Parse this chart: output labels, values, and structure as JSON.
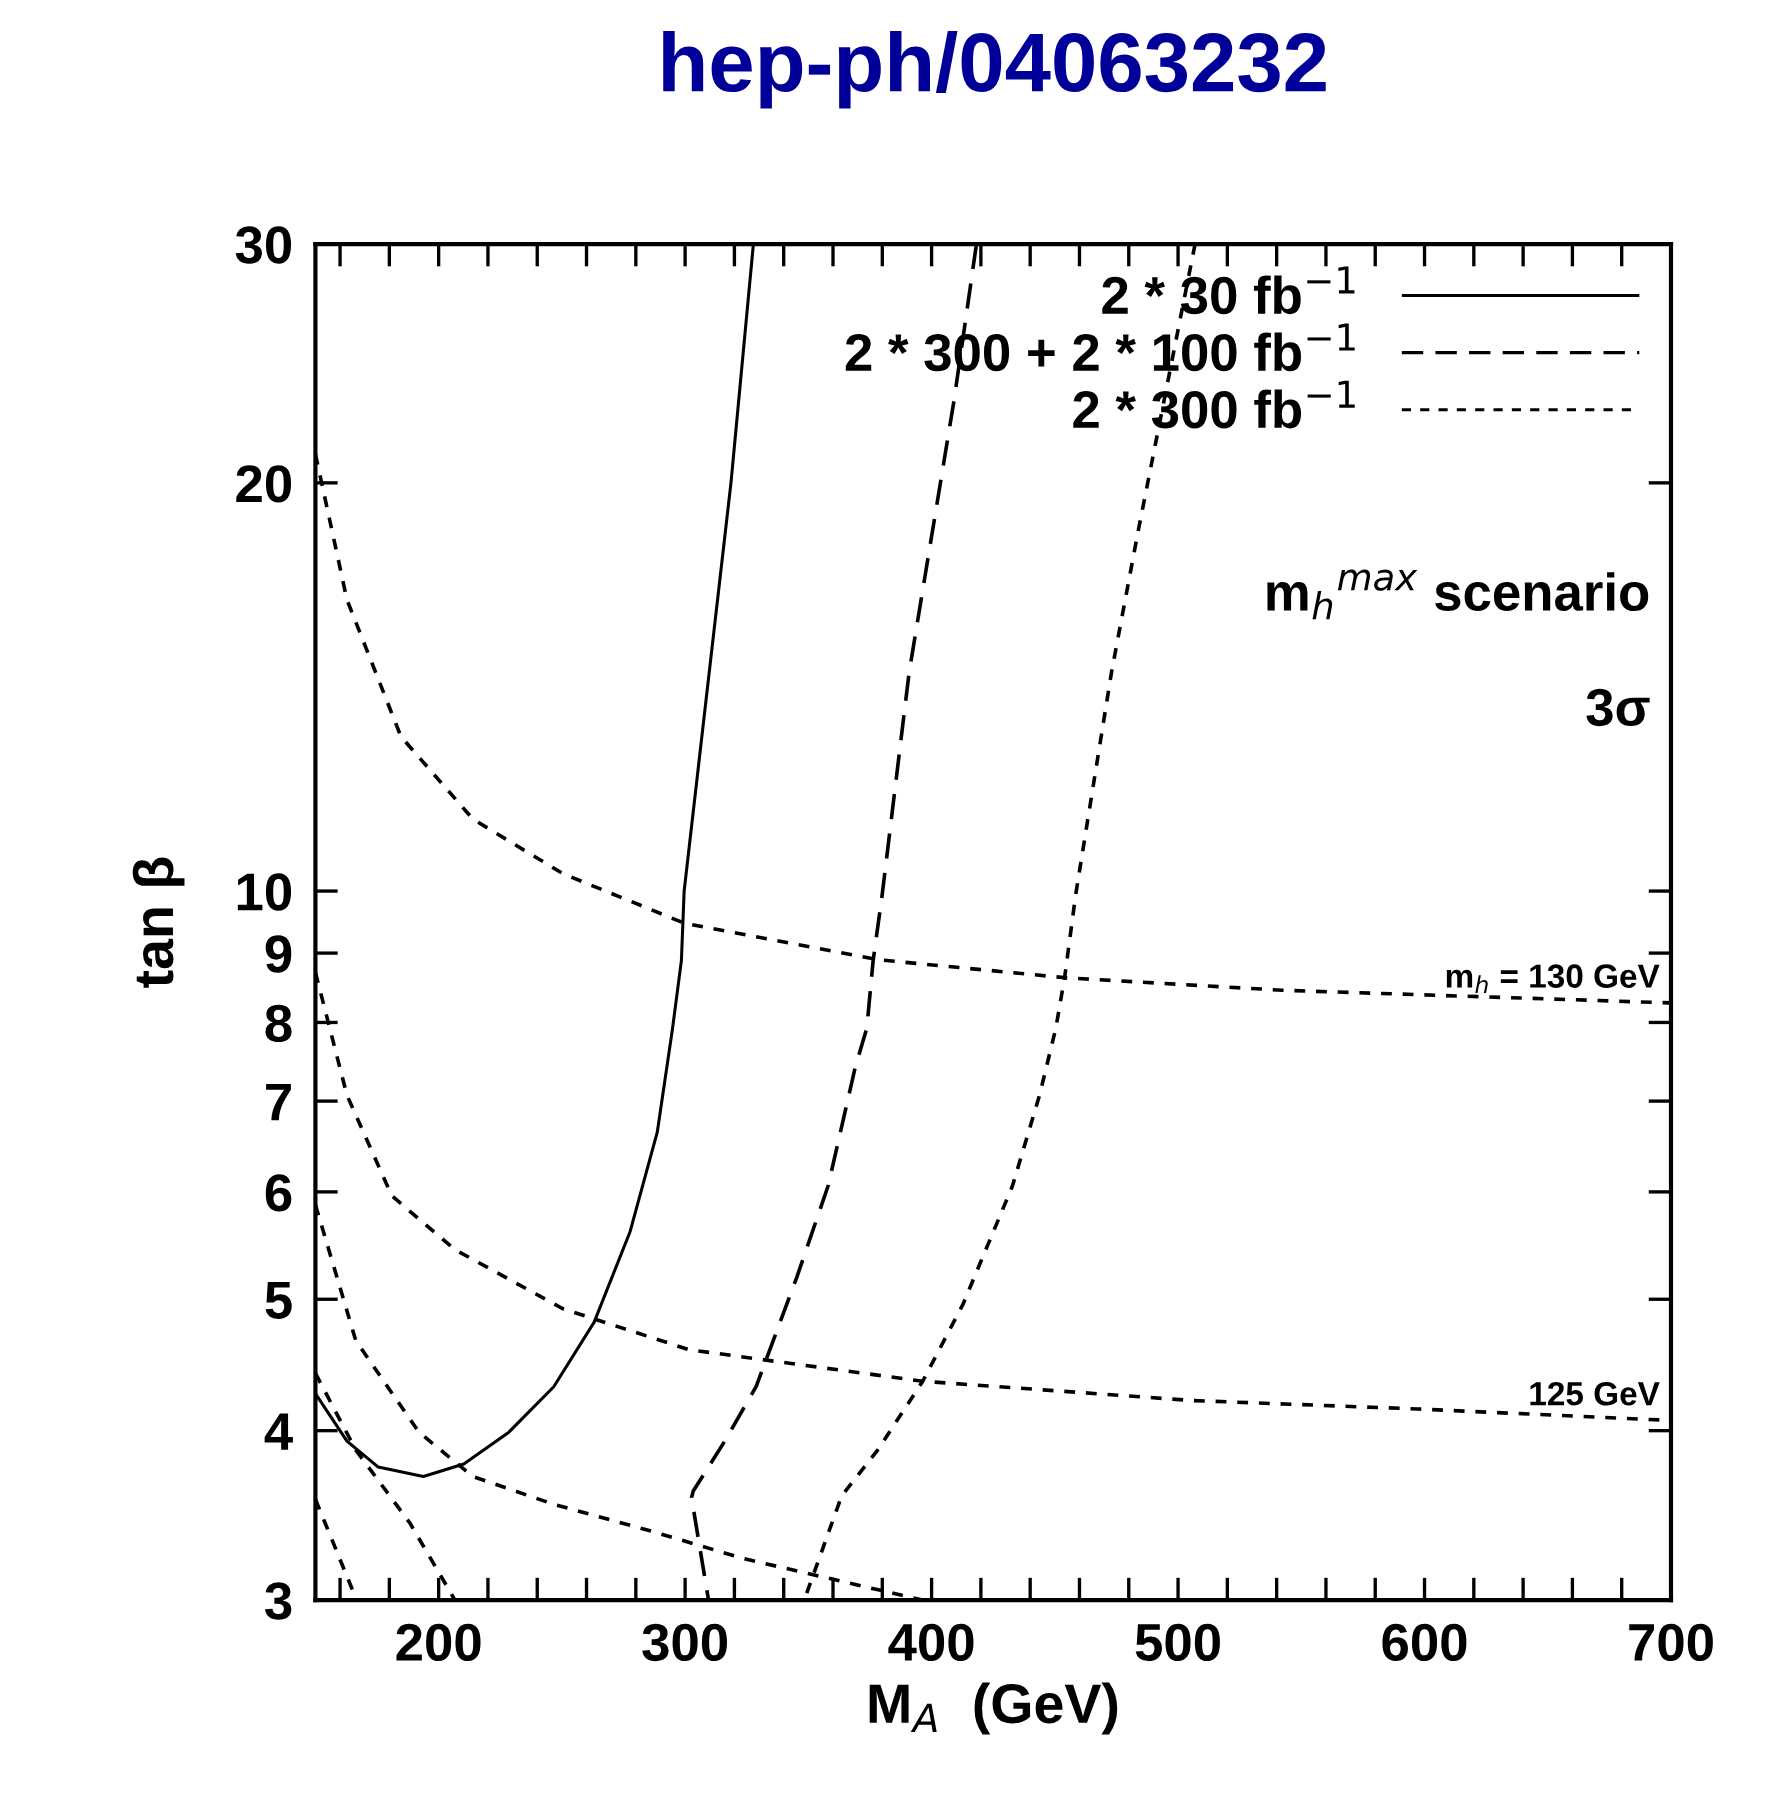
{
  "chart_data": {
    "type": "line",
    "title": "hep-ph/04063232",
    "xlabel": "M$_{A}$  (GeV)",
    "ylabel": "tan β",
    "log": "y",
    "xlim": [
      150,
      700
    ],
    "ylim": [
      3,
      30
    ],
    "xticks": [
      {
        "value": 160,
        "label": null
      },
      {
        "value": 180,
        "label": null
      },
      200,
      {
        "value": 220,
        "label": null
      },
      {
        "value": 240,
        "label": null
      },
      {
        "value": 260,
        "label": null
      },
      {
        "value": 280,
        "label": null
      },
      300,
      {
        "value": 320,
        "label": null
      },
      {
        "value": 340,
        "label": null
      },
      {
        "value": 360,
        "label": null
      },
      {
        "value": 380,
        "label": null
      },
      400,
      {
        "value": 420,
        "label": null
      },
      {
        "value": 440,
        "label": null
      },
      {
        "value": 460,
        "label": null
      },
      {
        "value": 480,
        "label": null
      },
      500,
      {
        "value": 520,
        "label": null
      },
      {
        "value": 540,
        "label": null
      },
      {
        "value": 560,
        "label": null
      },
      {
        "value": 580,
        "label": null
      },
      600,
      {
        "value": 620,
        "label": null
      },
      {
        "value": 640,
        "label": null
      },
      {
        "value": 660,
        "label": null
      },
      {
        "value": 680,
        "label": null
      },
      700
    ],
    "yticks": [
      3,
      4,
      5,
      6,
      7,
      8,
      9,
      10,
      20,
      30
    ],
    "grid": false,
    "legend": "top right",
    "marker": "none",
    "series": [
      {
        "name": "2 * 30 fb$^{−1}$",
        "color": "#000000",
        "line_style": "solid",
        "x": [
          327.7,
          318.6,
          299.6,
          298.5,
          294.9,
          288.7,
          277.7,
          263.1,
          246.7,
          228.5,
          210.2,
          193.8,
          175.5,
          162.8,
          150
        ],
        "values": [
          30,
          20,
          10,
          8.89,
          7.92,
          6.64,
          5.61,
          4.81,
          4.31,
          3.99,
          3.78,
          3.7,
          3.76,
          3.93,
          4.26
        ]
      },
      {
        "name": "2 * 300 + 2 * 100 fb$^{−1}$",
        "color": "#000000",
        "line_style": "dashed",
        "x": [
          418.2,
          409.1,
          390.9,
          379.9,
          376.3,
          373.7,
          369,
          358,
          345.3,
          328.8,
          316.1,
          303.3,
          302.6,
          309.5
        ],
        "values": [
          30,
          23,
          14.5,
          9.92,
          8.89,
          7.92,
          7.41,
          6.06,
          5.19,
          4.31,
          3.93,
          3.61,
          3.57,
          3
        ]
      },
      {
        "name": "2 * 300 fb$^{−1}$",
        "color": "#000000",
        "line_style": "dotted",
        "x": [
          506.9,
          484,
          473,
          458.4,
          454,
          450.4,
          443.8,
          432.8,
          412.8,
          396.4,
          378.1,
          363.5,
          348.9
        ],
        "values": [
          30,
          18.5,
          14.5,
          9.92,
          8.64,
          7.92,
          7.07,
          6.06,
          4.96,
          4.35,
          3.87,
          3.58,
          3.02
        ]
      },
      {
        "color": "#000000",
        "line_style": "dotted",
        "x": [
          150,
          162.8,
          184.7,
          213.9,
          250.4,
          299.6,
          378.1,
          454.7,
          542.3,
          700
        ],
        "values": [
          21,
          16.4,
          13,
          11.3,
          10.3,
          9.47,
          8.9,
          8.63,
          8.45,
          8.27
        ]
      },
      {
        "color": "#000000",
        "line_style": "dotted",
        "x": [
          150,
          162.8,
          181,
          206.6,
          250.4,
          301.5,
          396.4,
          505.8,
          597.1,
          700
        ],
        "values": [
          8.71,
          7.07,
          5.96,
          5.44,
          4.92,
          4.59,
          4.35,
          4.21,
          4.15,
          4.07
        ]
      },
      {
        "color": "#000000",
        "line_style": "dotted",
        "x": [
          150,
          166.4,
          192,
          213.9,
          246.7,
          286.9,
          323.4,
          396.4
        ],
        "values": [
          5.87,
          4.66,
          3.99,
          3.7,
          3.53,
          3.37,
          3.22,
          3
        ]
      },
      {
        "color": "#000000",
        "line_style": "dotted",
        "x": [
          150,
          166.4,
          188.3,
          206.6
        ],
        "values": [
          4.41,
          3.87,
          3.42,
          3
        ]
      },
      {
        "color": "#000000",
        "line_style": "dotted",
        "x": [
          150,
          166.4
        ],
        "values": [
          3.56,
          3.01
        ]
      }
    ],
    "annotations": [
      "m$_{h}$$^{max}$ scenario",
      "3σ",
      {
        "text": "m$_{h}$ = 130 GeV",
        "x": 700,
        "y": 8.27
      },
      {
        "text": "125 GeV",
        "x": 700,
        "y": 4.07
      }
    ]
  }
}
